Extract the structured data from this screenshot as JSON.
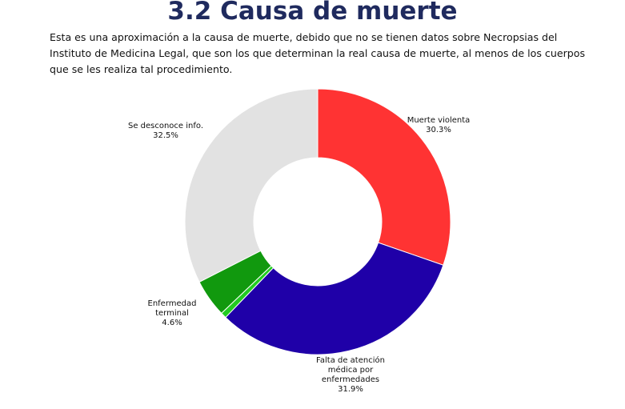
{
  "page": {
    "title": "3.2 Causa de muerte",
    "intro": "Esta es una aproximación a la causa de muerte, debido que no se tienen datos sobre Necropsias del Instituto de Medicina Legal, que son los que determinan la real causa de muerte, al menos de los cuerpos que se les realiza tal procedimiento."
  },
  "chart_data": {
    "type": "pie",
    "variant": "donut",
    "slices": [
      {
        "label_lines": [
          "Muerte violenta"
        ],
        "value": 30.3,
        "value_label": "30.3%",
        "color": "#ff3333"
      },
      {
        "label_lines": [
          "Falta de atención",
          "médica por",
          "enfermedades"
        ],
        "value": 31.9,
        "value_label": "31.9%",
        "color": "#1f00a8"
      },
      {
        "label_lines": [],
        "value": 0.7,
        "value_label": "",
        "color": "#22cc22"
      },
      {
        "label_lines": [
          "Enfermedad",
          "terminal"
        ],
        "value": 4.6,
        "value_label": "4.6%",
        "color": "#11990e"
      },
      {
        "label_lines": [
          "Se desconoce info."
        ],
        "value": 32.5,
        "value_label": "32.5%",
        "color": "#e2e2e2"
      }
    ]
  }
}
